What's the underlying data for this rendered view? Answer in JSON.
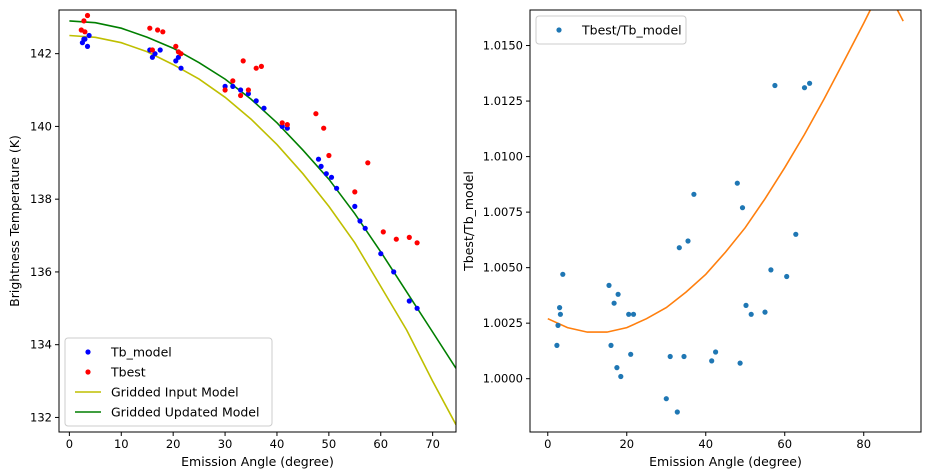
{
  "chart_data": [
    {
      "type": "scatter",
      "xlabel": "Emission Angle (degree)",
      "ylabel": "Brightness Temperature (K)",
      "xlim": [
        -2,
        74.5
      ],
      "ylim": [
        131.6,
        143.2
      ],
      "xticks": [
        0,
        10,
        20,
        30,
        40,
        50,
        60,
        70
      ],
      "yticks": [
        132,
        134,
        136,
        138,
        140,
        142
      ],
      "legend_position": "lower-left",
      "grid": false,
      "series": [
        {
          "name": "Tb_model",
          "kind": "points",
          "color": "#0000ff",
          "x": [
            2.5,
            3.0,
            3.5,
            3.8,
            2.8,
            15.5,
            16.0,
            16.5,
            17.5,
            20.5,
            21.0,
            21.5,
            30.0,
            31.5,
            33.0,
            34.5,
            36.0,
            37.5,
            41.0,
            42.0,
            48.0,
            48.5,
            49.5,
            50.5,
            51.5,
            55.0,
            56.0,
            57.0,
            60.0,
            62.5,
            65.5,
            67.0
          ],
          "y": [
            142.3,
            142.4,
            142.2,
            142.5,
            142.4,
            142.1,
            141.9,
            142.0,
            142.1,
            141.8,
            141.9,
            141.6,
            141.1,
            141.1,
            141.0,
            140.9,
            140.7,
            140.5,
            140.0,
            139.95,
            139.1,
            138.9,
            138.7,
            138.6,
            138.3,
            137.8,
            137.4,
            137.2,
            136.5,
            136.0,
            135.2,
            135.0
          ]
        },
        {
          "name": "Tbest",
          "kind": "points",
          "color": "#ff0000",
          "x": [
            2.3,
            2.8,
            3.5,
            3.0,
            15.5,
            16.0,
            17.0,
            18.0,
            20.5,
            21.0,
            21.5,
            30.0,
            31.5,
            33.0,
            33.5,
            34.5,
            36.0,
            37.0,
            41.0,
            42.0,
            47.5,
            49.0,
            50.0,
            55.0,
            57.5,
            60.5,
            63.0,
            65.5,
            67.0
          ],
          "y": [
            142.65,
            142.9,
            143.05,
            142.6,
            142.7,
            142.1,
            142.65,
            142.6,
            142.2,
            142.05,
            142.0,
            141.0,
            141.25,
            140.85,
            141.8,
            141.0,
            141.6,
            141.65,
            140.1,
            140.05,
            140.35,
            139.95,
            139.2,
            138.2,
            139.0,
            137.1,
            136.9,
            136.95,
            136.8
          ]
        },
        {
          "name": "Gridded Input Model",
          "kind": "line",
          "color": "#bfbf00",
          "x": [
            0,
            5,
            10,
            15,
            20,
            25,
            30,
            35,
            40,
            45,
            50,
            55,
            60,
            65,
            70,
            74.5
          ],
          "y": [
            142.5,
            142.45,
            142.3,
            142.05,
            141.7,
            141.3,
            140.8,
            140.2,
            139.5,
            138.7,
            137.8,
            136.8,
            135.6,
            134.4,
            133.0,
            131.8
          ]
        },
        {
          "name": "Gridded Updated Model",
          "kind": "line",
          "color": "#007f00",
          "x": [
            0,
            5,
            10,
            15,
            20,
            25,
            30,
            35,
            40,
            45,
            50,
            55,
            60,
            65,
            70,
            74.5
          ],
          "y": [
            142.9,
            142.85,
            142.7,
            142.45,
            142.15,
            141.75,
            141.3,
            140.75,
            140.1,
            139.35,
            138.55,
            137.6,
            136.55,
            135.45,
            134.35,
            133.35
          ]
        }
      ]
    },
    {
      "type": "scatter",
      "xlabel": "Emission Angle (degree)",
      "ylabel": "Tbest/Tb_model",
      "xlim": [
        -4.5,
        94.5
      ],
      "ylim": [
        0.9976,
        1.0166
      ],
      "xticks": [
        0,
        20,
        40,
        60,
        80
      ],
      "yticks": [
        1.0,
        1.0025,
        1.005,
        1.0075,
        1.01,
        1.0125,
        1.015
      ],
      "ytick_labels": [
        "1.0000",
        "1.0025",
        "1.0050",
        "1.0075",
        "1.0100",
        "1.0125",
        "1.0150"
      ],
      "legend_position": "top-left",
      "grid": false,
      "series": [
        {
          "name": "Tbest/Tb_model",
          "kind": "points",
          "color": "#1f77b4",
          "x": [
            2.3,
            2.6,
            3.0,
            3.2,
            3.8,
            15.5,
            16.0,
            16.8,
            17.5,
            17.8,
            18.5,
            20.5,
            21.0,
            21.7,
            30.0,
            31.0,
            32.8,
            33.3,
            34.5,
            35.5,
            37.0,
            41.5,
            42.5,
            48.0,
            48.7,
            49.3,
            50.2,
            51.5,
            55.0,
            56.5,
            57.5,
            60.5,
            62.8,
            65.0,
            66.3
          ],
          "y": [
            1.0015,
            1.0024,
            1.0032,
            1.0029,
            1.0047,
            1.0042,
            1.0015,
            1.0034,
            1.0005,
            1.0038,
            1.0001,
            1.0029,
            1.0011,
            1.0029,
            0.9991,
            1.001,
            0.9985,
            1.0059,
            1.001,
            1.0062,
            1.0083,
            1.0008,
            1.0012,
            1.0088,
            1.0007,
            1.0077,
            1.0033,
            1.0029,
            1.003,
            1.0049,
            1.0132,
            1.0046,
            1.0065,
            1.0131,
            1.0133
          ]
        },
        {
          "name": "",
          "kind": "line",
          "color": "#ff7f0e",
          "x": [
            0,
            5,
            10,
            15,
            20,
            25,
            30,
            35,
            40,
            45,
            50,
            55,
            60,
            65,
            70,
            75,
            80,
            85,
            90
          ],
          "y": [
            1.0027,
            1.0023,
            1.0021,
            1.0021,
            1.0023,
            1.0027,
            1.0032,
            1.0039,
            1.0047,
            1.0057,
            1.0068,
            1.0081,
            1.0095,
            1.011,
            1.0126,
            1.0143,
            1.016,
            1.0178,
            1.0161
          ]
        }
      ]
    }
  ]
}
